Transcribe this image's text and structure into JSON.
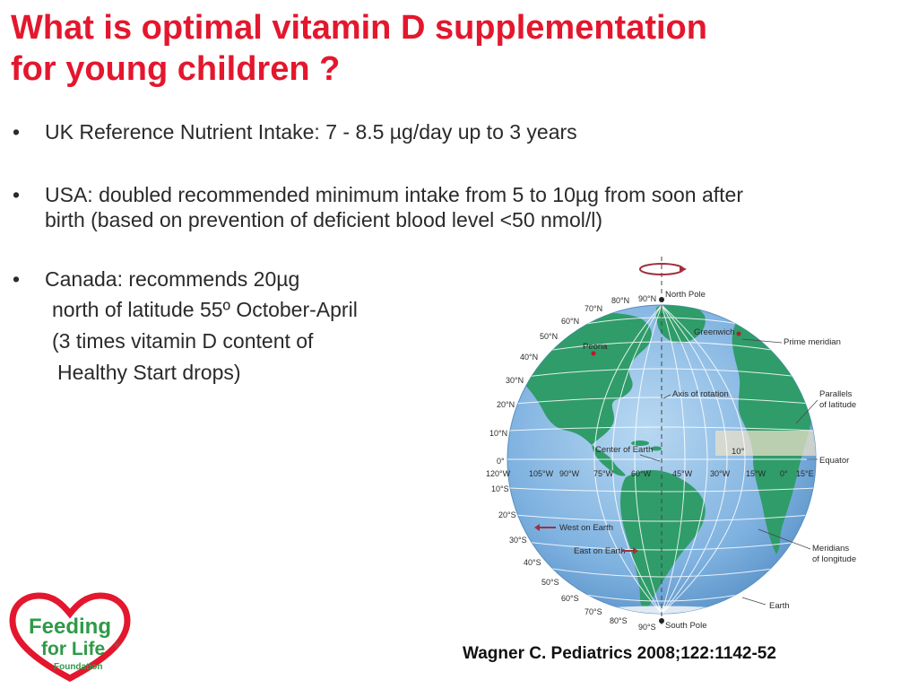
{
  "title": {
    "line1": "What is optimal vitamin D supplementation",
    "line2": "for young children ?"
  },
  "bullet_symbol": "•",
  "bullets": [
    {
      "text": "UK Reference Nutrient Intake:   7 - 8.5 µg/day   up to 3 years"
    },
    {
      "line1": "USA: doubled recommended minimum intake from 5 to 10µg from soon after",
      "line2": "birth (based on prevention of deficient blood level <50 nmol/l)"
    },
    {
      "line1": "Canada: recommends 20µg",
      "line2": "north of latitude 55º October-April",
      "line3": "(3 times vitamin D content of",
      "line4": "Healthy Start drops)"
    }
  ],
  "citation": "Wagner C. Pediatrics 2008;122:1142-52",
  "globe": {
    "latitudes": [
      "90°N",
      "80°N",
      "70°N",
      "60°N",
      "50°N",
      "40°N",
      "30°N",
      "20°N",
      "10°N",
      "0°",
      "10°S",
      "20°S",
      "30°S",
      "40°S",
      "50°S",
      "60°S",
      "70°S",
      "80°S",
      "90°S"
    ],
    "longitudes": [
      "120°W",
      "105°W",
      "90°W",
      "75°W",
      "60°W",
      "45°W",
      "30°W",
      "15°W",
      "0°",
      "15°E"
    ],
    "labels": {
      "north_pole": "North Pole",
      "south_pole": "South Pole",
      "greenwich": "Greenwich",
      "prime_meridian": "Prime meridian",
      "peoria": "Peoria",
      "axis_of_rotation": "Axis of rotation",
      "parallels_1": "Parallels",
      "parallels_2": "of latitude",
      "center_of_earth": "Center of Earth",
      "angle": "10°",
      "equator": "Equator",
      "west_on_earth": "West on Earth",
      "east_on_earth": "East on Earth",
      "meridians_1": "Meridians",
      "meridians_2": "of longitude",
      "earth": "Earth"
    }
  },
  "logo": {
    "line1": "Feeding",
    "line2": "for Life",
    "line3": "Foundation",
    "registered": "®"
  },
  "colors": {
    "title": "#e3172d",
    "ocean": "#7fb2e0",
    "land": "#2f9c6a",
    "logo_heart": "#e3172d",
    "logo_text": "#2f9a48"
  }
}
